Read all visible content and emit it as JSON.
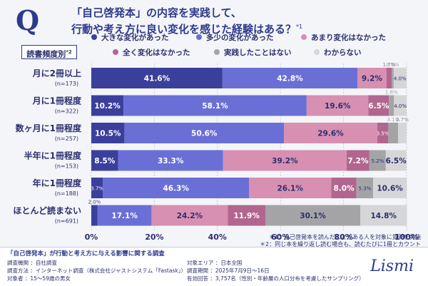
{
  "question": {
    "mark": "Q",
    "line1": "「自己啓発本」の内容を実践して、",
    "line2": "行動や考え方に良い変化を感じた経験はある？",
    "line2_sup": "*1"
  },
  "frequency_label": {
    "text": "読書頻度別",
    "sup": "*2"
  },
  "colors": {
    "big_change": "#3b3f9c",
    "some_change": "#6a6fd6",
    "not_much": "#d78fb2",
    "none_at_all": "#b2658e",
    "never_practiced": "#a4a4a6",
    "unknown": "#d6d6d8"
  },
  "chart_data": {
    "type": "bar",
    "orientation": "horizontal",
    "stacked": true,
    "categories": [
      {
        "label": "月に2冊以上",
        "n": "(n=173)"
      },
      {
        "label": "月に1冊程度",
        "n": "(n=322)"
      },
      {
        "label": "数ヶ月に1冊程度",
        "n": "(n=257)"
      },
      {
        "label": "半年に1冊程度",
        "n": "(n=153)"
      },
      {
        "label": "年に1冊程度",
        "n": "(n=188)"
      },
      {
        "label": "ほとんど読まない",
        "n": "(n=691)"
      }
    ],
    "series": [
      {
        "name": "大きな変化があった",
        "color": "#3b3f9c",
        "values": [
          41.6,
          10.2,
          10.5,
          8.5,
          3.7,
          2.0
        ]
      },
      {
        "name": "多少の変化があった",
        "color": "#6a6fd6",
        "values": [
          42.8,
          58.1,
          50.6,
          33.3,
          46.3,
          17.1
        ]
      },
      {
        "name": "あまり変化はなかった",
        "color": "#d78fb2",
        "values": [
          9.2,
          19.6,
          29.6,
          39.2,
          26.1,
          24.2
        ]
      },
      {
        "name": "全く変化はなかった",
        "color": "#b2658e",
        "values": [
          1.7,
          6.5,
          3.5,
          7.2,
          8.0,
          11.9
        ]
      },
      {
        "name": "実践したことはない",
        "color": "#a4a4a6",
        "values": [
          0.6,
          1.6,
          3.1,
          5.2,
          5.3,
          30.1
        ]
      },
      {
        "name": "わからない",
        "color": "#d6d6d8",
        "values": [
          4.0,
          4.0,
          2.7,
          6.5,
          10.6,
          14.8
        ]
      }
    ],
    "xlim": [
      0,
      100
    ],
    "xticks": [
      "0%",
      "20%",
      "40%",
      "60%",
      "80%",
      "100%"
    ],
    "legend_position": "top",
    "grid": true
  },
  "notes": {
    "note1": "＊1：自己啓発本を読んだことがある人を対象に質問を実施",
    "note2": "＊2：同じ本を繰り返し読む場合も、読むたびに1冊とカウント"
  },
  "footer": {
    "title": "「自己啓発本」が行動と考え方に与える影響に関する調査",
    "rows": [
      {
        "key": "調査機関",
        "value": "：自社調査"
      },
      {
        "key": "調査方法",
        "value": "：インターネット調査（株式会社ジャストシステム「Fastask」）"
      },
      {
        "key": "対象者",
        "value": "：15〜59歳の男女"
      },
      {
        "key": "対象エリア",
        "value": "：日本全国"
      },
      {
        "key": "調査期間",
        "value": "：2025年7月9日〜16日"
      },
      {
        "key": "有効回答",
        "value": "：3,757名（性別・年齢層の人口分布を考慮したサンプリング）"
      }
    ],
    "logo": "Lismi"
  }
}
